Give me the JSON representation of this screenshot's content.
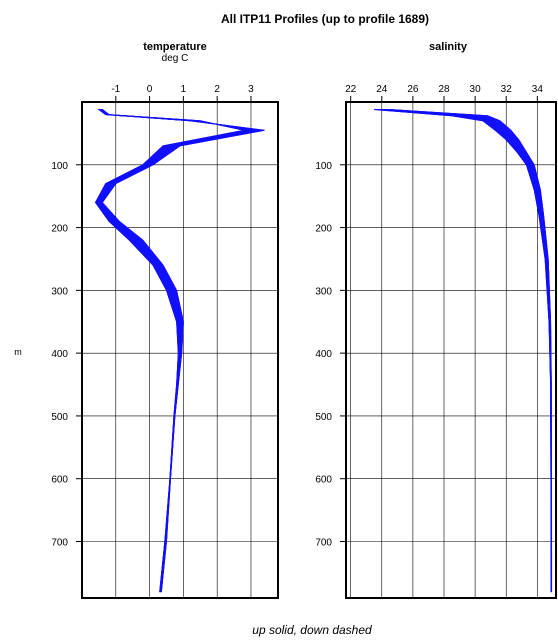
{
  "title": "All ITP11 Profiles (up to profile 1689)",
  "footer": "up solid, down dashed",
  "ylabel": "m",
  "colors": {
    "up": "#1010ff",
    "down": "#cc0033",
    "grid": "#000000"
  },
  "chart_data": [
    {
      "type": "line",
      "panel": "temperature",
      "title": "temperature",
      "unit": "deg C",
      "xlim": [
        -2,
        3.8
      ],
      "xticks": [
        -1,
        0,
        1,
        2,
        3
      ],
      "ylim": [
        790,
        0
      ],
      "yticks": [
        100,
        200,
        300,
        400,
        500,
        600,
        700
      ],
      "grid": true,
      "series": [
        {
          "x": [
            -1.4,
            -1.2,
            1.5,
            2.8,
            0.4,
            -0.2,
            -1.3,
            -1.6,
            -1.2,
            -0.6,
            0.1,
            0.5,
            0.8,
            0.85,
            0.8,
            0.72,
            0.6,
            0.45,
            0.3
          ],
          "y": [
            12,
            20,
            30,
            45,
            70,
            100,
            130,
            160,
            190,
            220,
            260,
            300,
            350,
            400,
            450,
            500,
            600,
            700,
            780
          ]
        },
        {
          "x": [
            -1.5,
            -1.3,
            1.2,
            3.4,
            0.9,
            0.1,
            -1.0,
            -1.4,
            -0.9,
            -0.2,
            0.4,
            0.8,
            1.0,
            0.95,
            0.85,
            0.75,
            0.62,
            0.5,
            0.35
          ],
          "y": [
            12,
            20,
            30,
            45,
            70,
            100,
            130,
            160,
            190,
            220,
            260,
            300,
            350,
            400,
            450,
            500,
            600,
            700,
            780
          ]
        }
      ]
    },
    {
      "type": "line",
      "panel": "salinity",
      "title": "salinity",
      "unit": "",
      "xlim": [
        21.7,
        35.2
      ],
      "xticks": [
        22,
        24,
        26,
        28,
        30,
        32,
        34
      ],
      "ylim": [
        790,
        0
      ],
      "yticks": [
        100,
        200,
        300,
        400,
        500,
        600,
        700
      ],
      "grid": true,
      "series": [
        {
          "x": [
            23.5,
            28.5,
            30.5,
            31.3,
            32.0,
            32.7,
            33.3,
            33.8,
            34.1,
            34.5,
            34.75,
            34.85,
            34.87,
            34.88
          ],
          "y": [
            12,
            22,
            30,
            45,
            60,
            80,
            100,
            140,
            180,
            250,
            350,
            450,
            600,
            780
          ]
        },
        {
          "x": [
            24.5,
            30.8,
            31.6,
            32.3,
            32.8,
            33.3,
            33.8,
            34.2,
            34.4,
            34.7,
            34.85,
            34.9,
            34.91,
            34.92
          ],
          "y": [
            12,
            22,
            30,
            45,
            60,
            80,
            100,
            140,
            180,
            250,
            350,
            450,
            600,
            780
          ]
        }
      ]
    }
  ]
}
